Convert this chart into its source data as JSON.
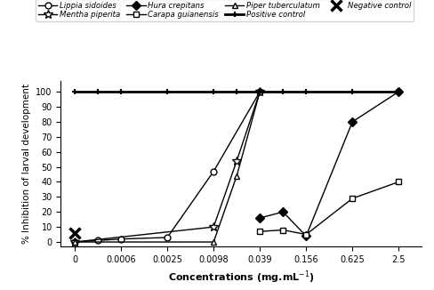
{
  "xtick_positions": [
    0,
    1,
    2,
    3,
    4,
    5,
    6,
    7
  ],
  "xtick_labels": [
    "0",
    "0.0006",
    "0.0025",
    "0.0098",
    "0.039",
    "0.156",
    "0.625",
    "2.5"
  ],
  "lippia": {
    "label": "Lippia sidoides",
    "x": [
      0,
      0.5,
      1,
      2,
      3,
      4
    ],
    "y": [
      0,
      1,
      2,
      3,
      47,
      100
    ],
    "marker": "o",
    "markerfacecolor": "white"
  },
  "mentha": {
    "label": "Mentha piperita",
    "x": [
      0,
      3,
      3.5,
      4
    ],
    "y": [
      0,
      10,
      54,
      100
    ],
    "marker": "*",
    "markerfacecolor": "white"
  },
  "hura": {
    "label": "Hura crepitans",
    "x": [
      4,
      4.5,
      5,
      6,
      7
    ],
    "y": [
      16,
      20,
      4,
      80,
      100
    ],
    "marker": "D",
    "markerfacecolor": "black"
  },
  "carapa": {
    "label": "Carapa guianensis",
    "x": [
      4,
      4.5,
      5,
      6,
      7
    ],
    "y": [
      7,
      8,
      5,
      29,
      40
    ],
    "marker": "s",
    "markerfacecolor": "white"
  },
  "piper": {
    "label": "Piper tuberculatum",
    "x": [
      0,
      3,
      3.5,
      4
    ],
    "y": [
      0,
      0,
      44,
      100
    ],
    "marker": "^",
    "markerfacecolor": "white"
  },
  "positive": {
    "label": "Positive control",
    "x": [
      0,
      0.5,
      1,
      2,
      3,
      3.5,
      4,
      4.5,
      5,
      6,
      7
    ],
    "y": [
      100,
      100,
      100,
      100,
      100,
      100,
      100,
      100,
      100,
      100,
      100
    ],
    "marker": "+",
    "markerfacecolor": "black"
  },
  "negative": {
    "label": "Negative control",
    "x": [
      0
    ],
    "y": [
      6
    ],
    "marker": "x",
    "markerfacecolor": "black"
  },
  "ylabel": "% Inhibition of larval development",
  "xlabel": "Concentrations (mg.mL",
  "ylim": [
    -3,
    107
  ],
  "xlim": [
    -0.3,
    7.5
  ],
  "yticks": [
    0,
    10,
    20,
    30,
    40,
    50,
    60,
    70,
    80,
    90,
    100
  ]
}
